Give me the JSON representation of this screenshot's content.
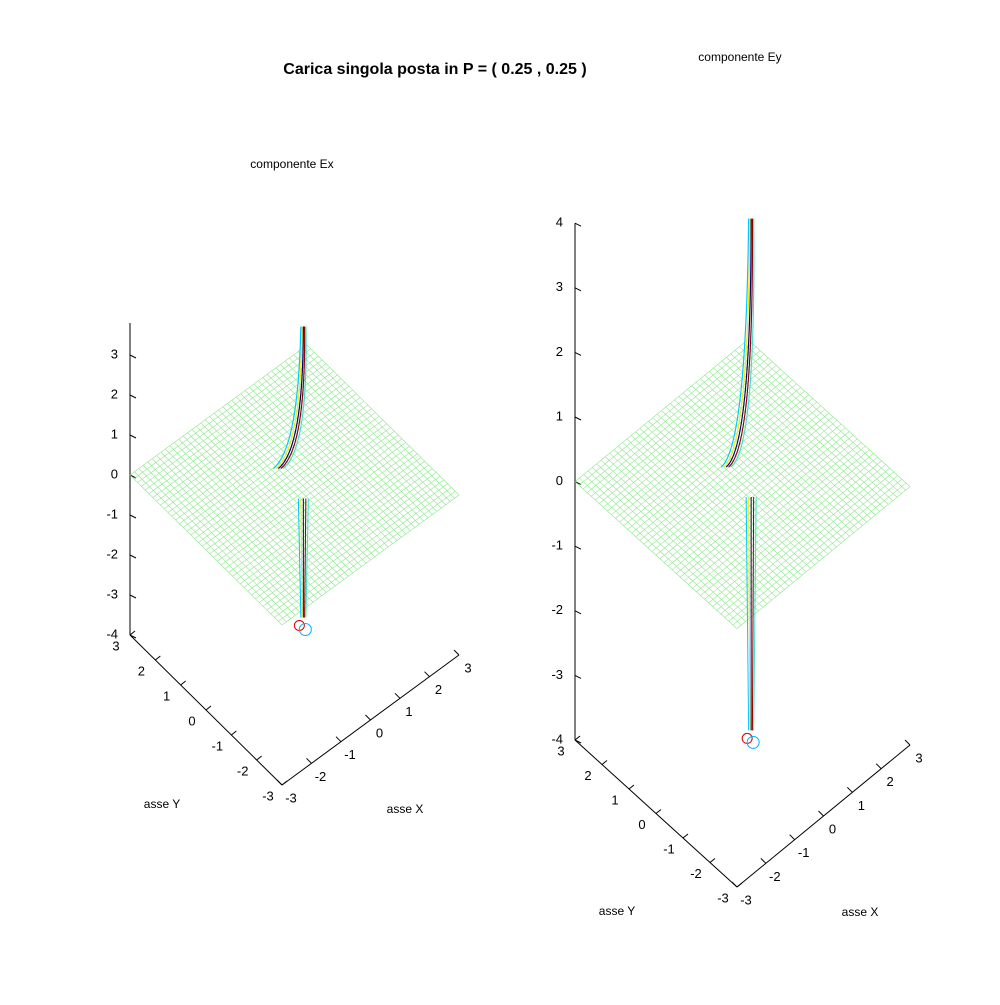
{
  "title": "Carica singola posta in P = ( 0.25 , 0.25 )",
  "chart_data": [
    {
      "type": "surface",
      "title": "componente Ex",
      "xlabel": "asse X",
      "ylabel": "asse Y",
      "xlim": [
        -3,
        3
      ],
      "xticks": [
        -3,
        -2,
        -1,
        0,
        1,
        2,
        3
      ],
      "ylim": [
        -3,
        3
      ],
      "yticks": [
        -3,
        -2,
        -1,
        0,
        1,
        2,
        3
      ],
      "zlim": [
        -4,
        3.8
      ],
      "zticks": [
        -4,
        -3,
        -2,
        -1,
        0,
        1,
        2,
        3
      ]
    },
    {
      "type": "surface",
      "title": "componente Ey",
      "xlabel": "asse X",
      "ylabel": "asse Y",
      "xlim": [
        -3,
        3
      ],
      "xticks": [
        -3,
        -2,
        -1,
        0,
        1,
        2,
        3
      ],
      "ylim": [
        -3,
        3
      ],
      "yticks": [
        -3,
        -2,
        -1,
        0,
        1,
        2,
        3
      ],
      "zlim": [
        -4,
        4
      ],
      "zticks": [
        -4,
        -3,
        -2,
        -1,
        0,
        1,
        2,
        3,
        4
      ]
    }
  ]
}
